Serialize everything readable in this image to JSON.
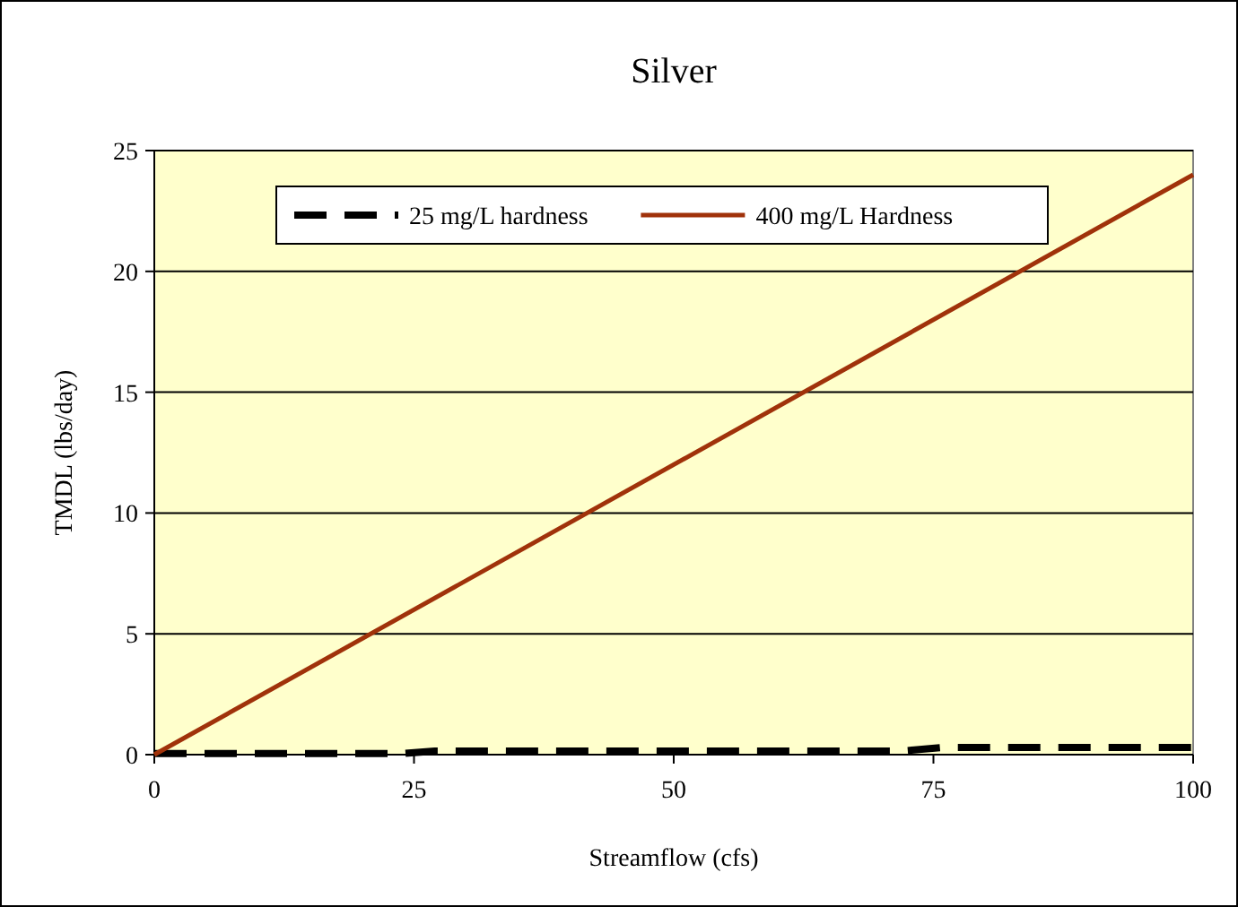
{
  "chart_data": {
    "type": "line",
    "title": "Silver",
    "xlabel": "Streamflow (cfs)",
    "ylabel": "TMDL (lbs/day)",
    "xlim": [
      0,
      100
    ],
    "xticks": [
      0,
      25,
      50,
      75,
      100
    ],
    "ylim": [
      0,
      25
    ],
    "yticks": [
      0,
      5,
      10,
      15,
      20,
      25
    ],
    "grid": "y",
    "legend": "top left",
    "marker": "none",
    "series": [
      {
        "name": "25 mg/L hardness",
        "color": "#000000",
        "line_style": "dashed",
        "x": [
          0,
          24,
          27,
          72,
          76,
          100
        ],
        "values": [
          0.05,
          0.05,
          0.15,
          0.15,
          0.3,
          0.3
        ]
      },
      {
        "name": "400 mg/L Hardness",
        "color": "#a0320a",
        "line_style": "solid",
        "x": [
          0,
          100
        ],
        "values": [
          0,
          24
        ]
      }
    ]
  }
}
